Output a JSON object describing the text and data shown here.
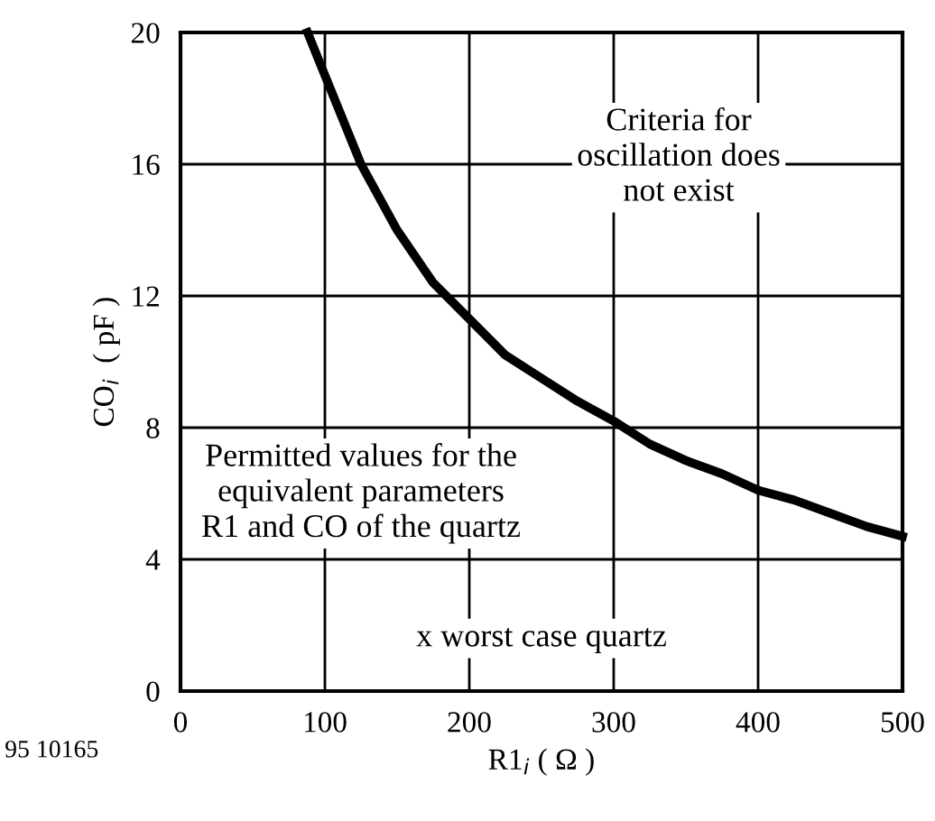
{
  "chart_data": {
    "type": "line",
    "xlabel": "R1$_{i}$ ( Ω )",
    "ylabel": "CO$_{i}$  ( pF )",
    "x": [
      88,
      100,
      125,
      150,
      175,
      200,
      225,
      250,
      275,
      300,
      325,
      350,
      375,
      400,
      425,
      450,
      475,
      500
    ],
    "series": [
      {
        "color": "#000000",
        "values": [
          20,
          18.7,
          16,
          14,
          12.4,
          11.3,
          10.2,
          9.5,
          8.8,
          8.2,
          7.5,
          7.0,
          6.6,
          6.1,
          5.8,
          5.4,
          5.0,
          4.7
        ]
      }
    ],
    "xlim": [
      0,
      500
    ],
    "ylim": [
      0,
      20
    ],
    "xticks": [
      0,
      100,
      200,
      300,
      400,
      500
    ],
    "yticks": [
      0,
      4,
      8,
      12,
      16,
      20
    ],
    "grid": true,
    "line_style": "solid",
    "marker": "none",
    "annotations": [
      "Criteria for\noscillation does\nnot exist",
      "Permitted values for the\nequivalent parameters\nR1 and CO of the quartz",
      "x worst case quartz",
      "95 10165"
    ]
  }
}
